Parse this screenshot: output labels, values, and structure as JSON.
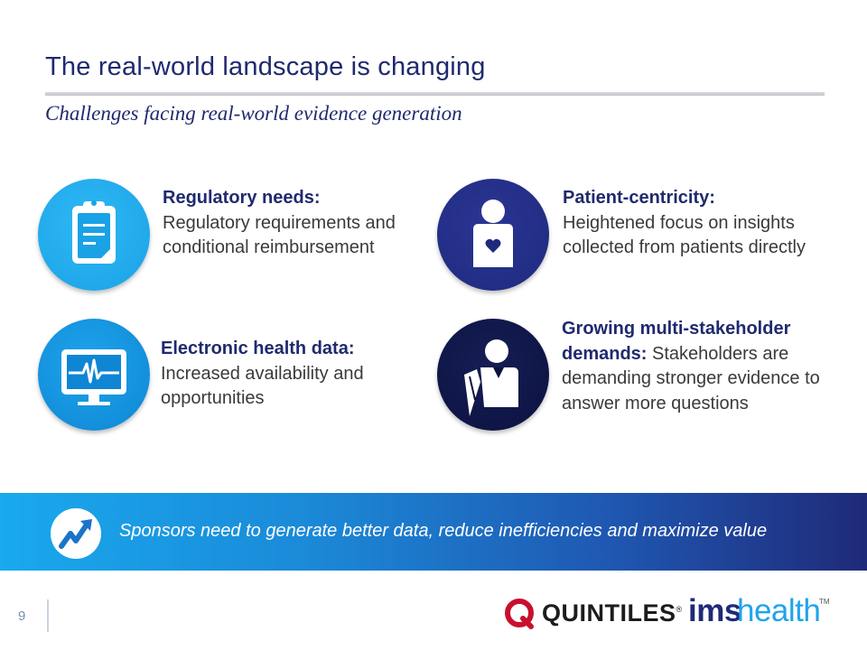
{
  "slide": {
    "title": "The real-world landscape is changing",
    "subtitle": "Challenges facing real-world evidence generation"
  },
  "challenges": [
    {
      "heading": "Regulatory needs:",
      "text": "Regulatory requirements and conditional reimbursement",
      "icon": "clipboard-icon",
      "color": "#1aa2e6"
    },
    {
      "heading": "Patient-centricity:",
      "text": "Heightened focus on insights collected from patients directly",
      "icon": "patient-heart-icon",
      "color": "#1e2a7e"
    },
    {
      "heading": "Electronic health data:",
      "text": "Increased availability and opportunities",
      "icon": "monitor-heartbeat-icon",
      "color": "#0e86d4"
    },
    {
      "heading": "Growing multi-stakeholder demands:",
      "text": "Stakeholders are demanding stronger evidence to answer more questions",
      "icon": "stakeholder-icon",
      "color": "#0c1340"
    }
  ],
  "banner": {
    "text": "Sponsors need to generate better data, reduce inefficiencies and maximize value",
    "icon": "trend-up-arrow-icon"
  },
  "footer": {
    "page_number": "9",
    "logo_quintiles": "QUINTILES",
    "logo_reg_mark": "®",
    "logo_ims": "ims",
    "logo_health": "health",
    "logo_tm": "TM"
  },
  "colors": {
    "title": "#1f2a6e",
    "text": "#3a3a3a",
    "banner_start": "#19a9ee",
    "banner_end": "#1f2a78",
    "quintiles_red": "#c8102e",
    "ims_blue": "#1f2a78",
    "health_blue": "#1fa4ec"
  }
}
